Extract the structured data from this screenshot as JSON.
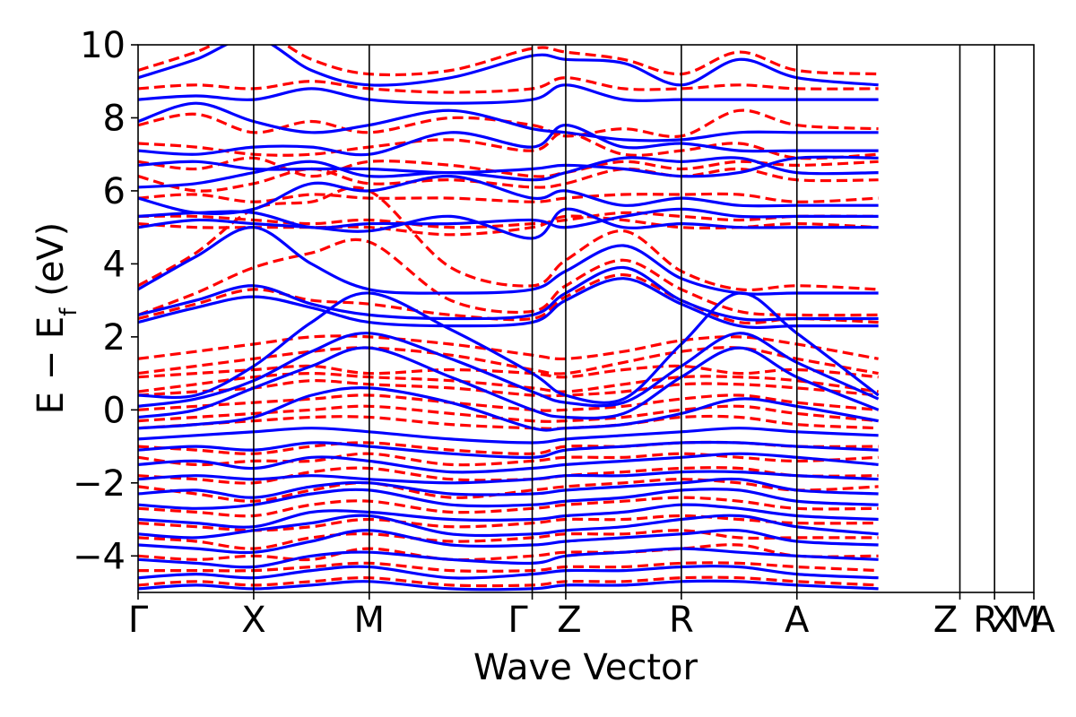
{
  "chart_data": {
    "type": "line",
    "xlabel": "Wave Vector",
    "ylabel_main": "E − E",
    "ylabel_sub": "f",
    "ylabel_unit": " (eV)",
    "ylim": [
      -5,
      10
    ],
    "yticks": [
      {
        "value": 10,
        "label": "10"
      },
      {
        "value": 8,
        "label": "8"
      },
      {
        "value": 6,
        "label": "6"
      },
      {
        "value": 4,
        "label": "4"
      },
      {
        "value": 2,
        "label": "2"
      },
      {
        "value": 0,
        "label": "0"
      },
      {
        "value": -2,
        "label": "−2"
      },
      {
        "value": -4,
        "label": "−4"
      }
    ],
    "xlim": [
      0,
      7.75
    ],
    "kpoints": [
      {
        "label": "Γ",
        "x": 0
      },
      {
        "label": "X",
        "x": 1
      },
      {
        "label": "M",
        "x": 2
      },
      {
        "label": "Γ",
        "x": 3.41
      },
      {
        "label": "Z",
        "x": 3.7
      },
      {
        "label": "R",
        "x": 4.7
      },
      {
        "label": "A",
        "x": 5.7
      },
      {
        "label": "Z",
        "x": 7.11
      },
      {
        "label": "R",
        "x": 7.41
      },
      {
        "label": "X",
        "x": 7.41
      },
      {
        "label": "M",
        "x": 7.75
      },
      {
        "label": "A",
        "x": 7.75
      }
    ],
    "grid": false,
    "legend": "none",
    "colors": {
      "solid": "#0000ff",
      "dashed": "#ff0000"
    },
    "series": [
      {
        "style": "solid",
        "color": "#0000ff",
        "bands": [
          [
            9.1,
            9.6,
            10.2,
            9.3,
            8.9,
            9.1,
            9.7,
            9.6,
            9.5,
            8.9,
            9.6,
            9.1,
            8.9
          ],
          [
            8.5,
            8.6,
            8.5,
            8.8,
            8.5,
            8.4,
            8.5,
            8.9,
            8.5,
            8.5,
            8.5,
            8.5,
            8.5
          ],
          [
            7.9,
            8.4,
            7.9,
            7.6,
            7.8,
            8.2,
            7.7,
            7.6,
            7.4,
            7.4,
            7.6,
            7.6,
            7.6
          ],
          [
            7.1,
            7.0,
            7.2,
            7.2,
            7.0,
            7.6,
            7.2,
            7.8,
            7.2,
            7.3,
            7.1,
            7.1,
            7.1
          ],
          [
            6.7,
            6.8,
            6.6,
            6.6,
            6.6,
            6.5,
            6.6,
            6.7,
            6.6,
            6.4,
            6.5,
            6.9,
            6.9
          ],
          [
            6.1,
            6.2,
            6.5,
            6.8,
            6.4,
            6.5,
            6.3,
            6.5,
            6.9,
            6.8,
            6.9,
            6.5,
            6.5
          ],
          [
            5.8,
            5.4,
            5.5,
            6.2,
            6.0,
            6.4,
            5.8,
            6.0,
            5.6,
            5.8,
            5.6,
            5.6,
            5.6
          ],
          [
            5.3,
            5.4,
            5.4,
            5.0,
            5.1,
            5.1,
            5.2,
            5.0,
            5.3,
            5.5,
            5.3,
            5.3,
            5.3
          ],
          [
            5.0,
            5.2,
            5.1,
            5.0,
            4.9,
            5.3,
            4.7,
            5.5,
            5.0,
            5.1,
            5.0,
            5.0,
            5.0
          ],
          [
            3.3,
            4.2,
            5.0,
            4.0,
            3.3,
            3.2,
            3.3,
            3.8,
            4.5,
            3.6,
            3.2,
            3.2,
            3.2
          ],
          [
            2.6,
            3.0,
            3.4,
            2.9,
            2.6,
            2.5,
            2.6,
            3.2,
            3.9,
            3.0,
            2.5,
            2.5,
            2.5
          ],
          [
            2.4,
            2.8,
            3.1,
            2.8,
            2.4,
            2.3,
            2.4,
            3.0,
            3.6,
            2.9,
            2.3,
            2.3,
            2.3
          ]
        ]
      },
      {
        "style": "solid",
        "color": "#0000ff",
        "bands": [
          [
            0.4,
            0.4,
            1.2,
            2.4,
            3.2,
            2.2,
            1.0,
            0.4,
            0.3,
            1.8,
            3.2,
            2.1,
            0.4
          ],
          [
            0.1,
            0.3,
            0.8,
            1.6,
            2.1,
            1.4,
            0.5,
            0.2,
            0.2,
            1.2,
            2.1,
            1.3,
            0.3
          ],
          [
            -0.2,
            0.0,
            0.6,
            1.2,
            1.7,
            0.9,
            0.0,
            -0.2,
            -0.1,
            0.9,
            1.7,
            0.9,
            0.0
          ],
          [
            -0.5,
            -0.4,
            -0.2,
            0.4,
            0.6,
            0.2,
            -0.5,
            -0.5,
            -0.4,
            -0.1,
            0.3,
            0.1,
            -0.3
          ],
          [
            -0.8,
            -0.7,
            -0.6,
            -0.5,
            -0.6,
            -0.8,
            -0.9,
            -0.8,
            -0.7,
            -0.6,
            -0.5,
            -0.6,
            -0.7
          ],
          [
            -1.1,
            -1.0,
            -1.1,
            -0.9,
            -1.0,
            -1.2,
            -1.3,
            -1.1,
            -1.0,
            -0.9,
            -0.9,
            -1.0,
            -1.1
          ],
          [
            -1.5,
            -1.4,
            -1.6,
            -1.3,
            -1.4,
            -1.7,
            -1.6,
            -1.5,
            -1.4,
            -1.3,
            -1.2,
            -1.3,
            -1.5
          ],
          [
            -1.9,
            -1.8,
            -1.9,
            -1.8,
            -1.9,
            -2.0,
            -1.9,
            -1.8,
            -1.8,
            -1.7,
            -1.7,
            -1.8,
            -1.9
          ],
          [
            -2.3,
            -2.2,
            -2.4,
            -2.1,
            -2.0,
            -2.3,
            -2.3,
            -2.2,
            -2.1,
            -2.0,
            -1.9,
            -2.2,
            -2.3
          ],
          [
            -2.6,
            -2.7,
            -2.6,
            -2.3,
            -2.2,
            -2.6,
            -2.6,
            -2.5,
            -2.4,
            -2.2,
            -2.2,
            -2.5,
            -2.6
          ],
          [
            -3.0,
            -3.1,
            -3.2,
            -2.8,
            -2.8,
            -3.0,
            -3.0,
            -2.9,
            -2.8,
            -2.6,
            -2.7,
            -2.9,
            -3.0
          ],
          [
            -3.4,
            -3.5,
            -3.3,
            -3.1,
            -2.9,
            -3.4,
            -3.4,
            -3.3,
            -3.2,
            -3.0,
            -2.9,
            -3.2,
            -3.4
          ],
          [
            -3.7,
            -3.8,
            -3.9,
            -3.6,
            -3.3,
            -3.7,
            -3.7,
            -3.6,
            -3.5,
            -3.4,
            -3.3,
            -3.6,
            -3.7
          ],
          [
            -4.1,
            -4.2,
            -4.3,
            -4.0,
            -3.9,
            -4.1,
            -4.2,
            -4.0,
            -3.9,
            -3.8,
            -3.9,
            -4.0,
            -4.1
          ],
          [
            -4.6,
            -4.5,
            -4.6,
            -4.4,
            -4.3,
            -4.6,
            -4.5,
            -4.4,
            -4.4,
            -4.3,
            -4.3,
            -4.5,
            -4.6
          ],
          [
            -4.9,
            -4.8,
            -4.9,
            -4.8,
            -4.7,
            -4.9,
            -4.9,
            -4.8,
            -4.8,
            -4.7,
            -4.7,
            -4.8,
            -4.9
          ]
        ]
      },
      {
        "style": "dashed",
        "color": "#ff0000",
        "bands": [
          [
            9.3,
            9.8,
            10.4,
            9.6,
            9.2,
            9.3,
            9.9,
            9.8,
            9.6,
            9.2,
            9.8,
            9.3,
            9.2
          ],
          [
            8.8,
            8.9,
            8.8,
            9.0,
            8.8,
            8.7,
            8.8,
            9.1,
            8.8,
            8.8,
            8.9,
            8.8,
            8.8
          ],
          [
            7.8,
            8.1,
            7.6,
            7.9,
            7.6,
            8.0,
            7.8,
            7.5,
            7.7,
            7.5,
            8.2,
            7.8,
            7.7
          ],
          [
            7.3,
            7.2,
            7.0,
            7.0,
            7.2,
            7.4,
            7.1,
            7.6,
            7.0,
            7.1,
            7.3,
            6.9,
            7.0
          ],
          [
            6.8,
            6.6,
            6.9,
            6.4,
            6.8,
            6.7,
            6.4,
            6.5,
            6.8,
            6.6,
            6.8,
            6.7,
            6.8
          ],
          [
            6.4,
            6.0,
            6.2,
            6.6,
            6.2,
            6.3,
            6.1,
            6.2,
            6.6,
            6.4,
            6.6,
            6.3,
            6.3
          ],
          [
            5.8,
            5.9,
            5.7,
            5.9,
            5.8,
            5.8,
            5.7,
            5.8,
            5.9,
            5.9,
            5.9,
            5.7,
            5.8
          ],
          [
            5.3,
            5.3,
            5.2,
            5.1,
            5.2,
            5.0,
            5.1,
            5.2,
            5.4,
            5.3,
            5.2,
            5.3,
            5.3
          ],
          [
            5.1,
            5.0,
            5.0,
            5.0,
            5.0,
            4.8,
            5.0,
            5.3,
            5.2,
            5.0,
            5.0,
            5.1,
            5.0
          ],
          [
            3.4,
            4.3,
            5.5,
            5.7,
            6.0,
            3.9,
            3.4,
            4.1,
            4.9,
            3.8,
            3.3,
            3.4,
            3.3
          ],
          [
            2.6,
            3.2,
            3.9,
            4.3,
            4.6,
            3.0,
            2.7,
            3.4,
            4.1,
            3.3,
            2.7,
            2.6,
            2.6
          ],
          [
            2.5,
            2.9,
            3.3,
            3.0,
            2.9,
            2.6,
            2.5,
            3.1,
            3.7,
            3.0,
            2.4,
            2.5,
            2.4
          ]
        ]
      },
      {
        "style": "dashed",
        "color": "#ff0000",
        "bands": [
          [
            1.4,
            1.6,
            1.8,
            2.0,
            2.0,
            1.8,
            1.5,
            1.4,
            1.6,
            1.9,
            2.0,
            1.8,
            1.4
          ],
          [
            1.0,
            1.2,
            1.4,
            1.6,
            1.7,
            1.5,
            1.1,
            1.0,
            1.3,
            1.6,
            1.7,
            1.4,
            1.0
          ],
          [
            0.9,
            1.0,
            1.1,
            1.2,
            1.0,
            1.1,
            1.0,
            0.9,
            1.1,
            1.2,
            1.0,
            1.1,
            0.9
          ],
          [
            0.5,
            0.7,
            0.9,
            1.0,
            0.9,
            0.8,
            0.6,
            0.5,
            0.7,
            0.9,
            0.9,
            0.8,
            0.5
          ],
          [
            0.4,
            0.5,
            0.6,
            0.8,
            0.7,
            0.6,
            0.4,
            0.4,
            0.5,
            0.7,
            0.7,
            0.6,
            0.4
          ],
          [
            0.0,
            0.1,
            0.2,
            0.3,
            0.4,
            0.2,
            0.0,
            0.0,
            0.1,
            0.3,
            0.4,
            0.2,
            0.0
          ],
          [
            -0.3,
            -0.2,
            -0.1,
            0.0,
            0.1,
            -0.1,
            -0.3,
            -0.3,
            -0.2,
            0.0,
            0.1,
            -0.1,
            -0.3
          ],
          [
            -0.5,
            -0.4,
            -0.3,
            -0.2,
            -0.2,
            -0.4,
            -0.5,
            -0.5,
            -0.4,
            -0.2,
            -0.2,
            -0.4,
            -0.5
          ]
        ]
      },
      {
        "style": "dashed",
        "color": "#ff0000",
        "bands": [
          [
            -1.0,
            -1.1,
            -1.2,
            -1.0,
            -0.9,
            -1.1,
            -1.2,
            -1.0,
            -1.0,
            -0.9,
            -0.9,
            -1.0,
            -1.0
          ],
          [
            -1.3,
            -1.5,
            -1.4,
            -1.4,
            -1.2,
            -1.5,
            -1.4,
            -1.3,
            -1.3,
            -1.2,
            -1.3,
            -1.4,
            -1.3
          ],
          [
            -1.8,
            -1.9,
            -2.0,
            -1.7,
            -1.6,
            -1.9,
            -1.9,
            -1.8,
            -1.7,
            -1.6,
            -1.6,
            -1.8,
            -1.8
          ],
          [
            -2.1,
            -2.3,
            -2.5,
            -2.2,
            -2.0,
            -2.4,
            -2.2,
            -2.1,
            -2.0,
            -1.9,
            -2.0,
            -2.2,
            -2.1
          ],
          [
            -2.7,
            -2.8,
            -2.9,
            -2.6,
            -2.5,
            -2.8,
            -2.7,
            -2.6,
            -2.5,
            -2.4,
            -2.5,
            -2.7,
            -2.7
          ],
          [
            -3.1,
            -3.2,
            -3.3,
            -3.2,
            -3.0,
            -3.2,
            -3.1,
            -3.0,
            -3.0,
            -2.9,
            -3.0,
            -3.1,
            -3.1
          ],
          [
            -3.5,
            -3.6,
            -3.8,
            -3.5,
            -3.4,
            -3.6,
            -3.5,
            -3.4,
            -3.4,
            -3.3,
            -3.5,
            -3.5,
            -3.5
          ],
          [
            -4.0,
            -4.1,
            -4.0,
            -4.1,
            -3.8,
            -4.1,
            -4.0,
            -3.9,
            -3.9,
            -3.8,
            -3.7,
            -4.0,
            -4.0
          ],
          [
            -4.4,
            -4.4,
            -4.4,
            -4.3,
            -4.2,
            -4.4,
            -4.4,
            -4.3,
            -4.3,
            -4.2,
            -4.2,
            -4.3,
            -4.4
          ],
          [
            -4.8,
            -4.7,
            -4.8,
            -4.7,
            -4.6,
            -4.8,
            -4.8,
            -4.7,
            -4.7,
            -4.6,
            -4.6,
            -4.7,
            -4.8
          ]
        ]
      }
    ]
  }
}
